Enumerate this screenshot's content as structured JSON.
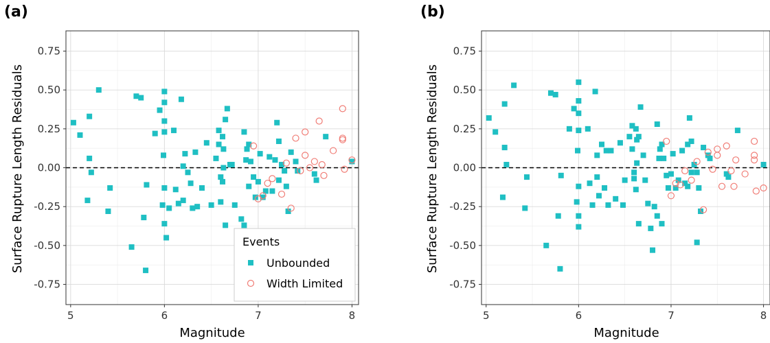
{
  "colors": {
    "unbounded": "#1fbfc3",
    "width_limited": "#f07c75",
    "grid_major": "#d9d9d9",
    "grid_minor": "#ececec",
    "border": "#333333",
    "refline": "#000000"
  },
  "chart_data": [
    {
      "panel_label": "(a)",
      "type": "scatter",
      "xlabel": "Magnitude",
      "ylabel": "Surface Rupture Length Residuals",
      "xlim": [
        4.95,
        8.07
      ],
      "ylim": [
        -0.88,
        0.88
      ],
      "xticks": [
        5,
        6,
        7,
        8
      ],
      "xtick_labels": [
        "5",
        "6",
        "7",
        "8"
      ],
      "yticks": [
        -0.75,
        -0.5,
        -0.25,
        0.0,
        0.25,
        0.5,
        0.75
      ],
      "ytick_labels": [
        "-0.75",
        "-0.50",
        "-0.25",
        "0.00",
        "0.25",
        "0.50",
        "0.75"
      ],
      "grid": true,
      "reference_line": 0,
      "legend": {
        "title": "Events",
        "position": "bottom-right",
        "items": [
          "Unbounded",
          "Width Limited"
        ]
      },
      "series": [
        {
          "name": "Unbounded",
          "marker": "filled-square",
          "points": [
            [
              5.03,
              0.29
            ],
            [
              5.1,
              0.21
            ],
            [
              5.18,
              -0.21
            ],
            [
              5.2,
              0.33
            ],
            [
              5.2,
              0.06
            ],
            [
              5.22,
              -0.03
            ],
            [
              5.3,
              0.5
            ],
            [
              5.4,
              -0.28
            ],
            [
              5.42,
              -0.13
            ],
            [
              5.65,
              -0.51
            ],
            [
              5.7,
              0.46
            ],
            [
              5.75,
              0.45
            ],
            [
              5.78,
              -0.32
            ],
            [
              5.8,
              -0.66
            ],
            [
              5.81,
              -0.11
            ],
            [
              5.9,
              0.22
            ],
            [
              5.95,
              0.37
            ],
            [
              5.98,
              -0.24
            ],
            [
              5.99,
              0.08
            ],
            [
              6.0,
              0.49
            ],
            [
              6.0,
              0.42
            ],
            [
              6.0,
              0.3
            ],
            [
              6.0,
              0.23
            ],
            [
              6.0,
              -0.13
            ],
            [
              6.0,
              -0.36
            ],
            [
              6.02,
              -0.45
            ],
            [
              6.05,
              -0.26
            ],
            [
              6.1,
              0.24
            ],
            [
              6.12,
              -0.14
            ],
            [
              6.15,
              -0.23
            ],
            [
              6.18,
              0.44
            ],
            [
              6.2,
              0.01
            ],
            [
              6.2,
              -0.21
            ],
            [
              6.22,
              0.09
            ],
            [
              6.25,
              -0.03
            ],
            [
              6.28,
              -0.1
            ],
            [
              6.3,
              -0.26
            ],
            [
              6.33,
              0.1
            ],
            [
              6.35,
              -0.25
            ],
            [
              6.4,
              -0.13
            ],
            [
              6.45,
              0.16
            ],
            [
              6.5,
              -0.24
            ],
            [
              6.55,
              0.06
            ],
            [
              6.58,
              0.24
            ],
            [
              6.58,
              0.15
            ],
            [
              6.6,
              -0.22
            ],
            [
              6.6,
              -0.06
            ],
            [
              6.62,
              -0.09
            ],
            [
              6.62,
              0.2
            ],
            [
              6.63,
              0.12
            ],
            [
              6.63,
              0.0
            ],
            [
              6.65,
              -0.37
            ],
            [
              6.65,
              0.31
            ],
            [
              6.67,
              0.38
            ],
            [
              6.7,
              0.02
            ],
            [
              6.72,
              0.02
            ],
            [
              6.75,
              -0.24
            ],
            [
              6.78,
              -0.42
            ],
            [
              6.8,
              -0.56
            ],
            [
              6.82,
              -0.33
            ],
            [
              6.85,
              -0.37
            ],
            [
              6.85,
              0.23
            ],
            [
              6.87,
              0.05
            ],
            [
              6.88,
              0.12
            ],
            [
              6.9,
              0.15
            ],
            [
              6.9,
              -0.12
            ],
            [
              6.92,
              0.04
            ],
            [
              6.95,
              -0.06
            ],
            [
              6.97,
              -0.19
            ],
            [
              7.0,
              -0.09
            ],
            [
              7.02,
              0.09
            ],
            [
              7.05,
              -0.19
            ],
            [
              7.08,
              -0.15
            ],
            [
              7.12,
              0.07
            ],
            [
              7.15,
              -0.15
            ],
            [
              7.18,
              0.05
            ],
            [
              7.2,
              0.29
            ],
            [
              7.22,
              0.17
            ],
            [
              7.22,
              -0.08
            ],
            [
              7.25,
              0.02
            ],
            [
              7.28,
              -0.02
            ],
            [
              7.3,
              -0.12
            ],
            [
              7.32,
              -0.28
            ],
            [
              7.35,
              0.1
            ],
            [
              7.4,
              0.04
            ],
            [
              7.42,
              -0.02
            ],
            [
              7.6,
              -0.04
            ],
            [
              7.62,
              -0.08
            ],
            [
              7.72,
              0.2
            ],
            [
              8.0,
              0.04
            ]
          ]
        },
        {
          "name": "Width Limited",
          "marker": "open-circle",
          "points": [
            [
              6.95,
              0.14
            ],
            [
              7.0,
              -0.2
            ],
            [
              7.05,
              -0.18
            ],
            [
              7.1,
              -0.1
            ],
            [
              7.15,
              -0.07
            ],
            [
              7.25,
              -0.17
            ],
            [
              7.3,
              0.03
            ],
            [
              7.35,
              -0.26
            ],
            [
              7.4,
              0.19
            ],
            [
              7.45,
              -0.02
            ],
            [
              7.5,
              0.23
            ],
            [
              7.5,
              0.08
            ],
            [
              7.55,
              0.0
            ],
            [
              7.6,
              0.04
            ],
            [
              7.65,
              0.3
            ],
            [
              7.68,
              0.02
            ],
            [
              7.7,
              -0.05
            ],
            [
              7.8,
              0.11
            ],
            [
              7.9,
              0.38
            ],
            [
              7.9,
              0.19
            ],
            [
              7.9,
              0.18
            ],
            [
              7.92,
              -0.01
            ],
            [
              8.0,
              0.05
            ]
          ]
        }
      ]
    },
    {
      "panel_label": "(b)",
      "type": "scatter",
      "xlabel": "Magnitude",
      "ylabel": "Surface Rupture Length Residuals",
      "xlim": [
        4.95,
        8.07
      ],
      "ylim": [
        -0.88,
        0.88
      ],
      "xticks": [
        5,
        6,
        7,
        8
      ],
      "xtick_labels": [
        "5",
        "6",
        "7",
        "8"
      ],
      "yticks": [
        -0.75,
        -0.5,
        -0.25,
        0.0,
        0.25,
        0.5,
        0.75
      ],
      "ytick_labels": [
        "-0.75",
        "-0.50",
        "-0.25",
        "0.00",
        "0.25",
        "0.50",
        "0.75"
      ],
      "grid": true,
      "reference_line": 0,
      "series": [
        {
          "name": "Unbounded",
          "marker": "filled-square",
          "points": [
            [
              5.03,
              0.32
            ],
            [
              5.1,
              0.23
            ],
            [
              5.18,
              -0.19
            ],
            [
              5.2,
              0.41
            ],
            [
              5.2,
              0.13
            ],
            [
              5.22,
              0.02
            ],
            [
              5.3,
              0.53
            ],
            [
              5.42,
              -0.26
            ],
            [
              5.44,
              -0.06
            ],
            [
              5.65,
              -0.5
            ],
            [
              5.7,
              0.48
            ],
            [
              5.75,
              0.47
            ],
            [
              5.78,
              -0.31
            ],
            [
              5.8,
              -0.65
            ],
            [
              5.81,
              -0.05
            ],
            [
              5.9,
              0.25
            ],
            [
              5.95,
              0.38
            ],
            [
              5.98,
              -0.22
            ],
            [
              5.99,
              0.11
            ],
            [
              6.0,
              0.55
            ],
            [
              6.0,
              0.43
            ],
            [
              6.0,
              0.35
            ],
            [
              6.0,
              0.24
            ],
            [
              6.0,
              -0.12
            ],
            [
              6.0,
              -0.31
            ],
            [
              6.0,
              -0.38
            ],
            [
              6.1,
              0.25
            ],
            [
              6.12,
              -0.1
            ],
            [
              6.15,
              -0.24
            ],
            [
              6.18,
              0.49
            ],
            [
              6.2,
              0.08
            ],
            [
              6.22,
              -0.18
            ],
            [
              6.2,
              -0.06
            ],
            [
              6.25,
              0.15
            ],
            [
              6.28,
              -0.13
            ],
            [
              6.3,
              0.11
            ],
            [
              6.32,
              -0.24
            ],
            [
              6.35,
              0.11
            ],
            [
              6.4,
              -0.2
            ],
            [
              6.45,
              0.16
            ],
            [
              6.48,
              -0.24
            ],
            [
              6.5,
              -0.08
            ],
            [
              6.55,
              0.2
            ],
            [
              6.58,
              0.12
            ],
            [
              6.58,
              0.27
            ],
            [
              6.6,
              -0.03
            ],
            [
              6.6,
              -0.07
            ],
            [
              6.62,
              -0.14
            ],
            [
              6.62,
              0.25
            ],
            [
              6.63,
              0.18
            ],
            [
              6.63,
              0.03
            ],
            [
              6.65,
              -0.36
            ],
            [
              6.65,
              0.2
            ],
            [
              6.67,
              0.39
            ],
            [
              6.7,
              0.08
            ],
            [
              6.72,
              -0.08
            ],
            [
              6.75,
              -0.23
            ],
            [
              6.78,
              -0.39
            ],
            [
              6.8,
              -0.53
            ],
            [
              6.82,
              -0.25
            ],
            [
              6.85,
              -0.31
            ],
            [
              6.85,
              0.28
            ],
            [
              6.87,
              0.06
            ],
            [
              6.88,
              0.12
            ],
            [
              6.9,
              0.15
            ],
            [
              6.9,
              -0.36
            ],
            [
              6.92,
              0.06
            ],
            [
              6.95,
              -0.05
            ],
            [
              6.97,
              -0.13
            ],
            [
              7.0,
              -0.04
            ],
            [
              7.02,
              0.09
            ],
            [
              7.05,
              -0.13
            ],
            [
              7.08,
              -0.08
            ],
            [
              7.12,
              0.11
            ],
            [
              7.15,
              -0.1
            ],
            [
              7.18,
              0.15
            ],
            [
              7.2,
              0.32
            ],
            [
              7.22,
              0.17
            ],
            [
              7.22,
              -0.03
            ],
            [
              7.25,
              0.02
            ],
            [
              7.28,
              -0.03
            ],
            [
              7.3,
              -0.13
            ],
            [
              7.32,
              -0.28
            ],
            [
              7.35,
              0.13
            ],
            [
              7.4,
              0.08
            ],
            [
              7.42,
              0.06
            ],
            [
              7.6,
              -0.04
            ],
            [
              7.62,
              -0.06
            ],
            [
              7.72,
              0.24
            ],
            [
              8.0,
              0.02
            ],
            [
              7.28,
              -0.48
            ],
            [
              7.18,
              -0.12
            ]
          ]
        },
        {
          "name": "Width Limited",
          "marker": "open-circle",
          "points": [
            [
              6.95,
              0.17
            ],
            [
              7.0,
              -0.18
            ],
            [
              7.05,
              -0.1
            ],
            [
              7.1,
              -0.11
            ],
            [
              7.15,
              -0.02
            ],
            [
              7.22,
              -0.08
            ],
            [
              7.28,
              0.04
            ],
            [
              7.35,
              -0.27
            ],
            [
              7.4,
              0.1
            ],
            [
              7.45,
              -0.01
            ],
            [
              7.5,
              0.12
            ],
            [
              7.5,
              0.08
            ],
            [
              7.55,
              -0.12
            ],
            [
              7.6,
              0.14
            ],
            [
              7.65,
              -0.02
            ],
            [
              7.68,
              -0.12
            ],
            [
              7.7,
              0.05
            ],
            [
              7.8,
              -0.04
            ],
            [
              7.9,
              0.17
            ],
            [
              7.9,
              0.08
            ],
            [
              7.9,
              0.05
            ],
            [
              7.92,
              -0.15
            ],
            [
              8.0,
              -0.13
            ]
          ]
        }
      ]
    }
  ]
}
